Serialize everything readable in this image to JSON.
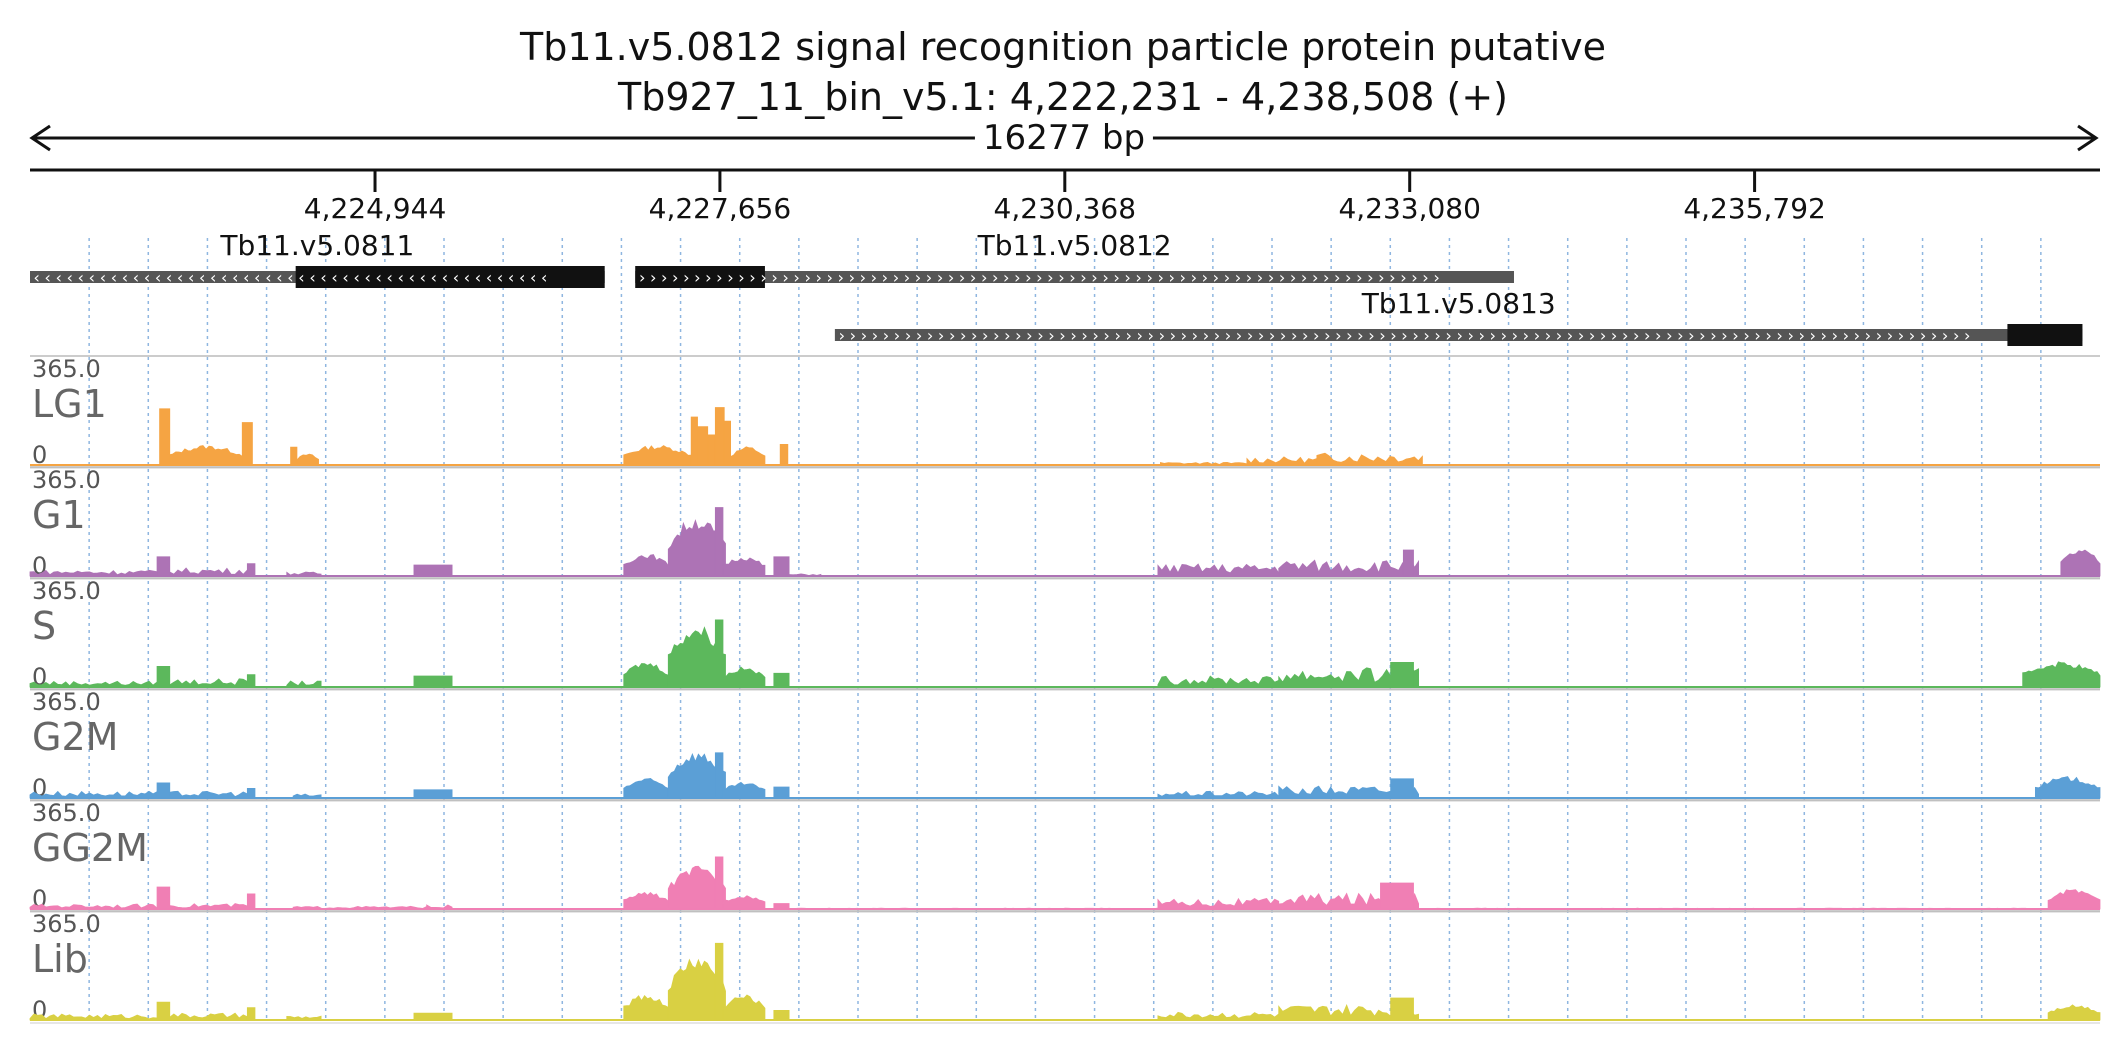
{
  "chart_data": {
    "type": "area",
    "title": "Tb11.v5.0812  signal recognition particle protein  putative",
    "subtitle": "Tb927_11_bin_v5.1: 4,222,231 - 4,238,508 (+)",
    "span_label": "16277 bp",
    "region": {
      "start": 4222231,
      "end": 4238508
    },
    "ticks": [
      {
        "pos": 4224944,
        "label": "4,224,944"
      },
      {
        "pos": 4227656,
        "label": "4,227,656"
      },
      {
        "pos": 4230368,
        "label": "4,230,368"
      },
      {
        "pos": 4233080,
        "label": "4,233,080"
      },
      {
        "pos": 4235792,
        "label": "4,235,792"
      }
    ],
    "genes": [
      {
        "name": "Tb11.v5.0811",
        "strand": "-",
        "start": 4222231,
        "end": 4226750,
        "cds": [
          [
            4224320,
            4226750
          ]
        ],
        "lane": 0
      },
      {
        "name": "Tb11.v5.0812",
        "strand": "+",
        "start": 4226990,
        "end": 4233900,
        "cds": [
          [
            4226990,
            4228010
          ]
        ],
        "lane": 0
      },
      {
        "name": "Tb11.v5.0813",
        "strand": "+",
        "start": 4228560,
        "end": 4238370,
        "cds": [
          [
            4237780,
            4238370
          ]
        ],
        "lane": 1
      }
    ],
    "tracks": [
      {
        "name": "LG1",
        "max_label": "365.0",
        "min_label": "0",
        "color": "#f5a443",
        "peaks": [
          [
            4223250,
            4223330,
            205,
            "bar"
          ],
          [
            4223330,
            4223900,
            70,
            "hump"
          ],
          [
            4223900,
            4223980,
            155,
            "bar"
          ],
          [
            4224280,
            4224330,
            65,
            "bar"
          ],
          [
            4224330,
            4224500,
            40,
            "hump"
          ],
          [
            4226900,
            4227430,
            70,
            "hump"
          ],
          [
            4227430,
            4227480,
            175,
            "bar"
          ],
          [
            4227480,
            4227560,
            140,
            "bar"
          ],
          [
            4227560,
            4227620,
            110,
            "bar"
          ],
          [
            4227620,
            4227690,
            210,
            "bar"
          ],
          [
            4227690,
            4227740,
            160,
            "bar"
          ],
          [
            4227740,
            4228010,
            65,
            "hump"
          ],
          [
            4228130,
            4228190,
            75,
            "bar"
          ],
          [
            4231120,
            4231800,
            10,
            "noise"
          ],
          [
            4231800,
            4232350,
            30,
            "noise"
          ],
          [
            4232350,
            4233180,
            45,
            "noise"
          ]
        ]
      },
      {
        "name": "G1",
        "max_label": "365.0",
        "min_label": "0",
        "color": "#ad73b5",
        "peaks": [
          [
            4222231,
            4223230,
            22,
            "noise"
          ],
          [
            4223230,
            4223330,
            70,
            "bar"
          ],
          [
            4223330,
            4223940,
            30,
            "noise"
          ],
          [
            4223940,
            4224000,
            45,
            "bar"
          ],
          [
            4224250,
            4224520,
            15,
            "noise"
          ],
          [
            4225250,
            4225550,
            40,
            "bar"
          ],
          [
            4226900,
            4227250,
            80,
            "hump"
          ],
          [
            4227250,
            4227700,
            210,
            "hump"
          ],
          [
            4227620,
            4227680,
            250,
            "bar"
          ],
          [
            4227680,
            4228010,
            70,
            "hump"
          ],
          [
            4228080,
            4228200,
            70,
            "bar"
          ],
          [
            4228200,
            4228450,
            8,
            "noise"
          ],
          [
            4231100,
            4232050,
            45,
            "noise"
          ],
          [
            4232050,
            4233150,
            60,
            "noise"
          ],
          [
            4233030,
            4233110,
            95,
            "bar"
          ],
          [
            4238200,
            4238508,
            95,
            "hump"
          ]
        ]
      },
      {
        "name": "S",
        "max_label": "365.0",
        "min_label": "0",
        "color": "#5cb85c",
        "peaks": [
          [
            4222231,
            4223230,
            22,
            "noise"
          ],
          [
            4223230,
            4223330,
            75,
            "bar"
          ],
          [
            4223330,
            4223940,
            30,
            "noise"
          ],
          [
            4223940,
            4224000,
            45,
            "bar"
          ],
          [
            4224250,
            4224520,
            22,
            "noise"
          ],
          [
            4225250,
            4225550,
            40,
            "bar"
          ],
          [
            4226900,
            4227250,
            90,
            "hump"
          ],
          [
            4227250,
            4227700,
            220,
            "hump"
          ],
          [
            4227620,
            4227680,
            245,
            "bar"
          ],
          [
            4227680,
            4228010,
            70,
            "hump"
          ],
          [
            4228080,
            4228200,
            50,
            "bar"
          ],
          [
            4231100,
            4232050,
            40,
            "noise"
          ],
          [
            4232050,
            4233150,
            70,
            "noise"
          ],
          [
            4232930,
            4233110,
            90,
            "bar"
          ],
          [
            4237900,
            4238508,
            90,
            "hump"
          ]
        ]
      },
      {
        "name": "G2M",
        "max_label": "365.0",
        "min_label": "0",
        "color": "#5b9fd6",
        "peaks": [
          [
            4222231,
            4223230,
            25,
            "noise"
          ],
          [
            4223230,
            4223330,
            55,
            "bar"
          ],
          [
            4223330,
            4223940,
            25,
            "noise"
          ],
          [
            4223940,
            4224000,
            35,
            "bar"
          ],
          [
            4224300,
            4224520,
            15,
            "noise"
          ],
          [
            4225250,
            4225550,
            30,
            "bar"
          ],
          [
            4226900,
            4227250,
            70,
            "hump"
          ],
          [
            4227250,
            4227700,
            165,
            "hump"
          ],
          [
            4227620,
            4227680,
            165,
            "bar"
          ],
          [
            4227680,
            4228010,
            55,
            "hump"
          ],
          [
            4228080,
            4228200,
            40,
            "bar"
          ],
          [
            4231100,
            4232050,
            25,
            "noise"
          ],
          [
            4232050,
            4233150,
            45,
            "noise"
          ],
          [
            4232930,
            4233110,
            70,
            "bar"
          ],
          [
            4238000,
            4238508,
            75,
            "hump"
          ]
        ]
      },
      {
        "name": "GG2M",
        "max_label": "365.0",
        "min_label": "0",
        "color": "#f07fb4",
        "peaks": [
          [
            4222231,
            4223230,
            18,
            "noise"
          ],
          [
            4223230,
            4223330,
            80,
            "bar"
          ],
          [
            4223330,
            4223940,
            20,
            "noise"
          ],
          [
            4223940,
            4224000,
            55,
            "bar"
          ],
          [
            4224300,
            4225350,
            10,
            "noise"
          ],
          [
            4225350,
            4225550,
            15,
            "noise"
          ],
          [
            4226900,
            4227250,
            60,
            "hump"
          ],
          [
            4227250,
            4227700,
            150,
            "hump"
          ],
          [
            4227620,
            4227680,
            190,
            "bar"
          ],
          [
            4227680,
            4228010,
            50,
            "hump"
          ],
          [
            4228080,
            4228200,
            20,
            "bar"
          ],
          [
            4228200,
            4238300,
            3,
            "noise"
          ],
          [
            4231100,
            4232050,
            40,
            "noise"
          ],
          [
            4232050,
            4233150,
            60,
            "noise"
          ],
          [
            4232850,
            4233110,
            95,
            "bar"
          ],
          [
            4238100,
            4238508,
            70,
            "hump"
          ]
        ]
      },
      {
        "name": "Lib",
        "max_label": "365.0",
        "min_label": "0",
        "color": "#d9d043",
        "peaks": [
          [
            4222231,
            4223230,
            22,
            "noise"
          ],
          [
            4223230,
            4223330,
            65,
            "bar"
          ],
          [
            4223330,
            4223940,
            25,
            "noise"
          ],
          [
            4223940,
            4224000,
            45,
            "bar"
          ],
          [
            4224250,
            4224520,
            15,
            "noise"
          ],
          [
            4225250,
            4225550,
            25,
            "bar"
          ],
          [
            4226900,
            4227250,
            90,
            "hump"
          ],
          [
            4227250,
            4227700,
            230,
            "hump"
          ],
          [
            4227620,
            4227680,
            280,
            "bar"
          ],
          [
            4227680,
            4228010,
            90,
            "hump"
          ],
          [
            4228080,
            4228200,
            35,
            "bar"
          ],
          [
            4231100,
            4232050,
            30,
            "noise"
          ],
          [
            4232050,
            4233150,
            55,
            "noise"
          ],
          [
            4232930,
            4233110,
            80,
            "bar"
          ],
          [
            4238100,
            4238508,
            55,
            "hump"
          ]
        ]
      }
    ],
    "y_range": [
      0,
      365
    ],
    "grid": true
  }
}
